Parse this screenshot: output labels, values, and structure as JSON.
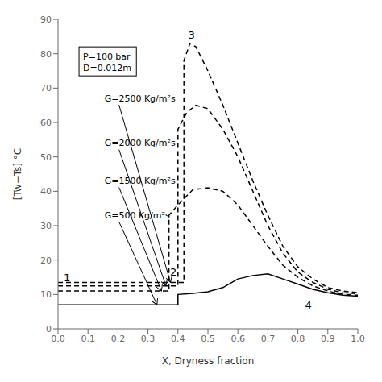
{
  "chart_data": {
    "type": "line",
    "xlabel": "X, Dryness fraction",
    "ylabel": "[Tw−Ts] °C",
    "xlim": [
      0.0,
      1.0
    ],
    "ylim": [
      0,
      90
    ],
    "xticks": [
      {
        "value": 0.0,
        "label": "0.0"
      },
      0.1,
      0.2,
      0.3,
      0.4,
      0.5,
      0.6,
      0.7,
      0.8,
      0.9,
      {
        "value": 1.0,
        "label": "1.0"
      }
    ],
    "yticks": [
      0,
      10,
      20,
      30,
      40,
      50,
      60,
      70,
      80,
      90
    ],
    "grid": false,
    "series": [
      {
        "color": "#000000",
        "line_style": "solid",
        "x": [
          0.0,
          0.4,
          0.4,
          0.45,
          0.5,
          0.55,
          0.6,
          0.65,
          0.7,
          0.75,
          0.8,
          0.85,
          0.9,
          0.95,
          1.0
        ],
        "values": [
          7.0,
          7.0,
          10.0,
          10.3,
          10.8,
          12.0,
          14.5,
          15.5,
          16.0,
          14.5,
          13.0,
          11.5,
          10.5,
          9.8,
          9.5
        ]
      },
      {
        "color": "#000000",
        "line_style": "dashed",
        "x": [
          0.0,
          0.37,
          0.37,
          0.4,
          0.45,
          0.5,
          0.55,
          0.6,
          0.65,
          0.7,
          0.75,
          0.8,
          0.85,
          0.9,
          0.95,
          1.0
        ],
        "values": [
          11.0,
          11.0,
          33.0,
          36.0,
          40.5,
          41.0,
          40.0,
          36.0,
          30.0,
          24.0,
          18.5,
          15.0,
          12.5,
          11.0,
          10.0,
          9.8
        ]
      },
      {
        "color": "#000000",
        "line_style": "dashed",
        "x": [
          0.0,
          0.4,
          0.4,
          0.43,
          0.46,
          0.5,
          0.55,
          0.6,
          0.65,
          0.7,
          0.75,
          0.8,
          0.85,
          0.9,
          0.95,
          1.0
        ],
        "values": [
          12.5,
          12.5,
          58.0,
          63.0,
          65.0,
          64.0,
          58.0,
          50.0,
          40.0,
          30.0,
          22.0,
          16.5,
          13.5,
          11.5,
          10.5,
          10.2
        ]
      },
      {
        "color": "#000000",
        "line_style": "dashed",
        "x": [
          0.0,
          0.42,
          0.42,
          0.44,
          0.46,
          0.5,
          0.55,
          0.6,
          0.65,
          0.7,
          0.75,
          0.8,
          0.85,
          0.9,
          0.95,
          1.0
        ],
        "values": [
          13.5,
          13.5,
          78.0,
          83.0,
          82.0,
          75.0,
          65.0,
          54.0,
          43.0,
          33.0,
          24.0,
          18.0,
          14.5,
          12.0,
          11.0,
          10.5
        ]
      }
    ],
    "annotations": [
      {
        "text": "P=100 bar\nD=0.012m",
        "x": 0.07,
        "y": 82,
        "box": true
      },
      {
        "text": "1",
        "x": 0.03,
        "y": 14.8
      },
      {
        "text": "2",
        "x": 0.385,
        "y": 16.5
      },
      {
        "text": "3",
        "x": 0.445,
        "y": 85.5
      },
      {
        "text": "4",
        "x": 0.835,
        "y": 7.0
      },
      {
        "text": "G=2500 Kg/m²s",
        "x": 0.155,
        "y": 67,
        "arrow_x": 0.375,
        "arrow_y": 13.5
      },
      {
        "text": "G=2000 Kg/m²s",
        "x": 0.155,
        "y": 54,
        "arrow_x": 0.36,
        "arrow_y": 12.5
      },
      {
        "text": "G=1500 Kg/m²s",
        "x": 0.155,
        "y": 43,
        "arrow_x": 0.345,
        "arrow_y": 11.0
      },
      {
        "text": "G=500 Kg/m²s",
        "x": 0.155,
        "y": 33,
        "arrow_x": 0.33,
        "arrow_y": 7.0
      }
    ]
  }
}
